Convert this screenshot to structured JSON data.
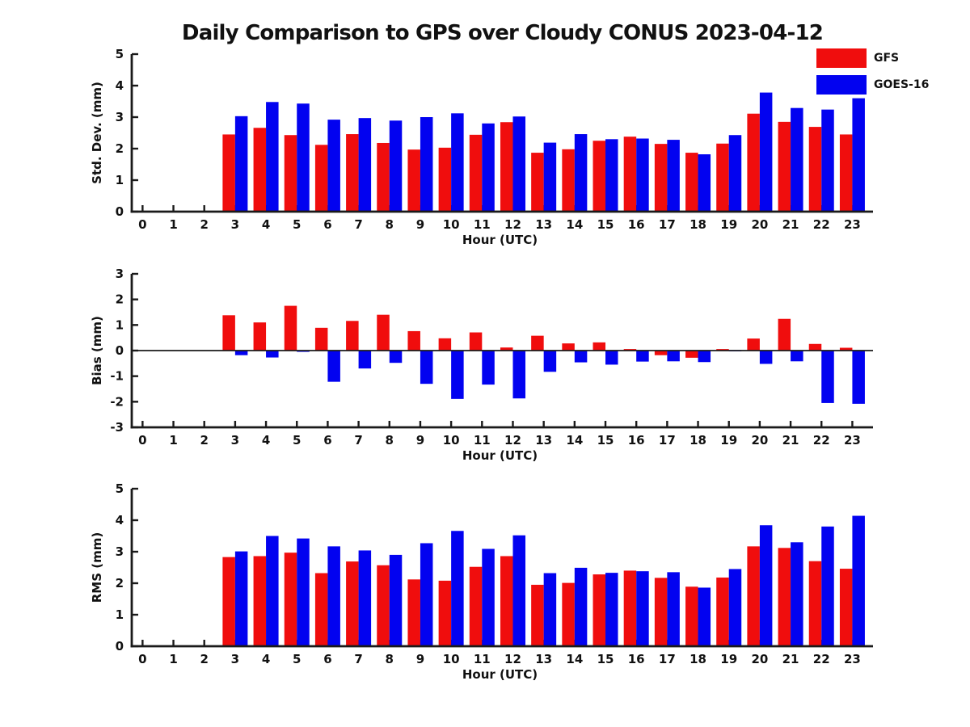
{
  "title": "Daily Comparison to GPS over Cloudy CONUS 2023-04-12",
  "legend": {
    "items": [
      {
        "label": "GFS",
        "color": "#f00d0d"
      },
      {
        "label": "GOES-16",
        "color": "#0202f0"
      }
    ]
  },
  "chart_data": [
    {
      "type": "bar",
      "title": "",
      "xlabel": "Hour (UTC)",
      "ylabel": "Std. Dev. (mm)",
      "ylim": [
        0,
        5
      ],
      "yticks": [
        0,
        1,
        2,
        3,
        4,
        5
      ],
      "categories": [
        0,
        1,
        2,
        3,
        4,
        5,
        6,
        7,
        8,
        9,
        10,
        11,
        12,
        13,
        14,
        15,
        16,
        17,
        18,
        19,
        20,
        21,
        22,
        23
      ],
      "legend_position": "upper-right-outside",
      "grid": false,
      "series": [
        {
          "name": "GFS",
          "color": "#f00d0d",
          "values": [
            null,
            null,
            null,
            2.45,
            2.66,
            2.43,
            2.12,
            2.46,
            2.18,
            1.97,
            2.03,
            2.44,
            2.84,
            1.87,
            1.98,
            2.25,
            2.38,
            2.15,
            1.87,
            2.16,
            3.11,
            2.85,
            2.69,
            2.45
          ]
        },
        {
          "name": "GOES-16",
          "color": "#0202f0",
          "values": [
            null,
            null,
            null,
            3.03,
            3.48,
            3.43,
            2.92,
            2.97,
            2.89,
            3.0,
            3.12,
            2.8,
            3.02,
            2.19,
            2.46,
            2.3,
            2.32,
            2.28,
            1.82,
            2.43,
            3.78,
            3.29,
            3.24,
            3.6
          ]
        }
      ]
    },
    {
      "type": "bar",
      "title": "",
      "xlabel": "Hour (UTC)",
      "ylabel": "Bias (mm)",
      "ylim": [
        -3,
        3
      ],
      "yticks": [
        -3,
        -2,
        -1,
        0,
        1,
        2,
        3
      ],
      "categories": [
        0,
        1,
        2,
        3,
        4,
        5,
        6,
        7,
        8,
        9,
        10,
        11,
        12,
        13,
        14,
        15,
        16,
        17,
        18,
        19,
        20,
        21,
        22,
        23
      ],
      "grid": false,
      "zero_line": true,
      "series": [
        {
          "name": "GFS",
          "color": "#f00d0d",
          "values": [
            null,
            null,
            null,
            1.38,
            1.1,
            1.75,
            0.89,
            1.16,
            1.4,
            0.76,
            0.48,
            0.71,
            0.12,
            0.58,
            0.28,
            0.32,
            0.06,
            -0.18,
            -0.28,
            0.06,
            0.47,
            1.24,
            0.26,
            0.11
          ]
        },
        {
          "name": "GOES-16",
          "color": "#0202f0",
          "values": [
            null,
            null,
            null,
            -0.18,
            -0.27,
            -0.05,
            -1.22,
            -0.7,
            -0.48,
            -1.3,
            -1.89,
            -1.33,
            -1.87,
            -0.83,
            -0.46,
            -0.55,
            -0.43,
            -0.42,
            -0.45,
            -0.02,
            -0.52,
            -0.42,
            -2.05,
            -2.08
          ]
        }
      ]
    },
    {
      "type": "bar",
      "title": "",
      "xlabel": "Hour (UTC)",
      "ylabel": "RMS (mm)",
      "ylim": [
        0,
        5
      ],
      "yticks": [
        0,
        1,
        2,
        3,
        4,
        5
      ],
      "categories": [
        0,
        1,
        2,
        3,
        4,
        5,
        6,
        7,
        8,
        9,
        10,
        11,
        12,
        13,
        14,
        15,
        16,
        17,
        18,
        19,
        20,
        21,
        22,
        23
      ],
      "grid": false,
      "series": [
        {
          "name": "GFS",
          "color": "#f00d0d",
          "values": [
            null,
            null,
            null,
            2.83,
            2.86,
            2.97,
            2.32,
            2.69,
            2.57,
            2.12,
            2.08,
            2.52,
            2.86,
            1.95,
            2.01,
            2.28,
            2.4,
            2.17,
            1.89,
            2.18,
            3.17,
            3.12,
            2.7,
            2.46
          ]
        },
        {
          "name": "GOES-16",
          "color": "#0202f0",
          "values": [
            null,
            null,
            null,
            3.01,
            3.5,
            3.42,
            3.17,
            3.04,
            2.9,
            3.27,
            3.66,
            3.09,
            3.52,
            2.32,
            2.49,
            2.33,
            2.38,
            2.35,
            1.86,
            2.45,
            3.84,
            3.3,
            3.8,
            4.14
          ]
        }
      ]
    }
  ]
}
